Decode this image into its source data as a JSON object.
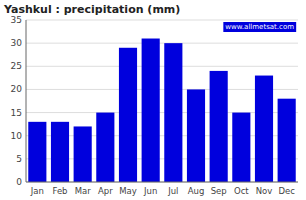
{
  "chart_data": {
    "type": "bar",
    "title": "Yashkul : precipitation (mm)",
    "categories": [
      "Jan",
      "Feb",
      "Mar",
      "Apr",
      "May",
      "Jun",
      "Jul",
      "Aug",
      "Sep",
      "Oct",
      "Nov",
      "Dec"
    ],
    "values": [
      13,
      13,
      12,
      15,
      29,
      31,
      30,
      20,
      24,
      15,
      23,
      18
    ],
    "color": "#0000dd",
    "ylim": [
      0,
      35
    ],
    "yticks": [
      0,
      5,
      10,
      15,
      20,
      25,
      30,
      35
    ],
    "grid": true,
    "annotations": [
      "www.allmetsat.com"
    ]
  }
}
